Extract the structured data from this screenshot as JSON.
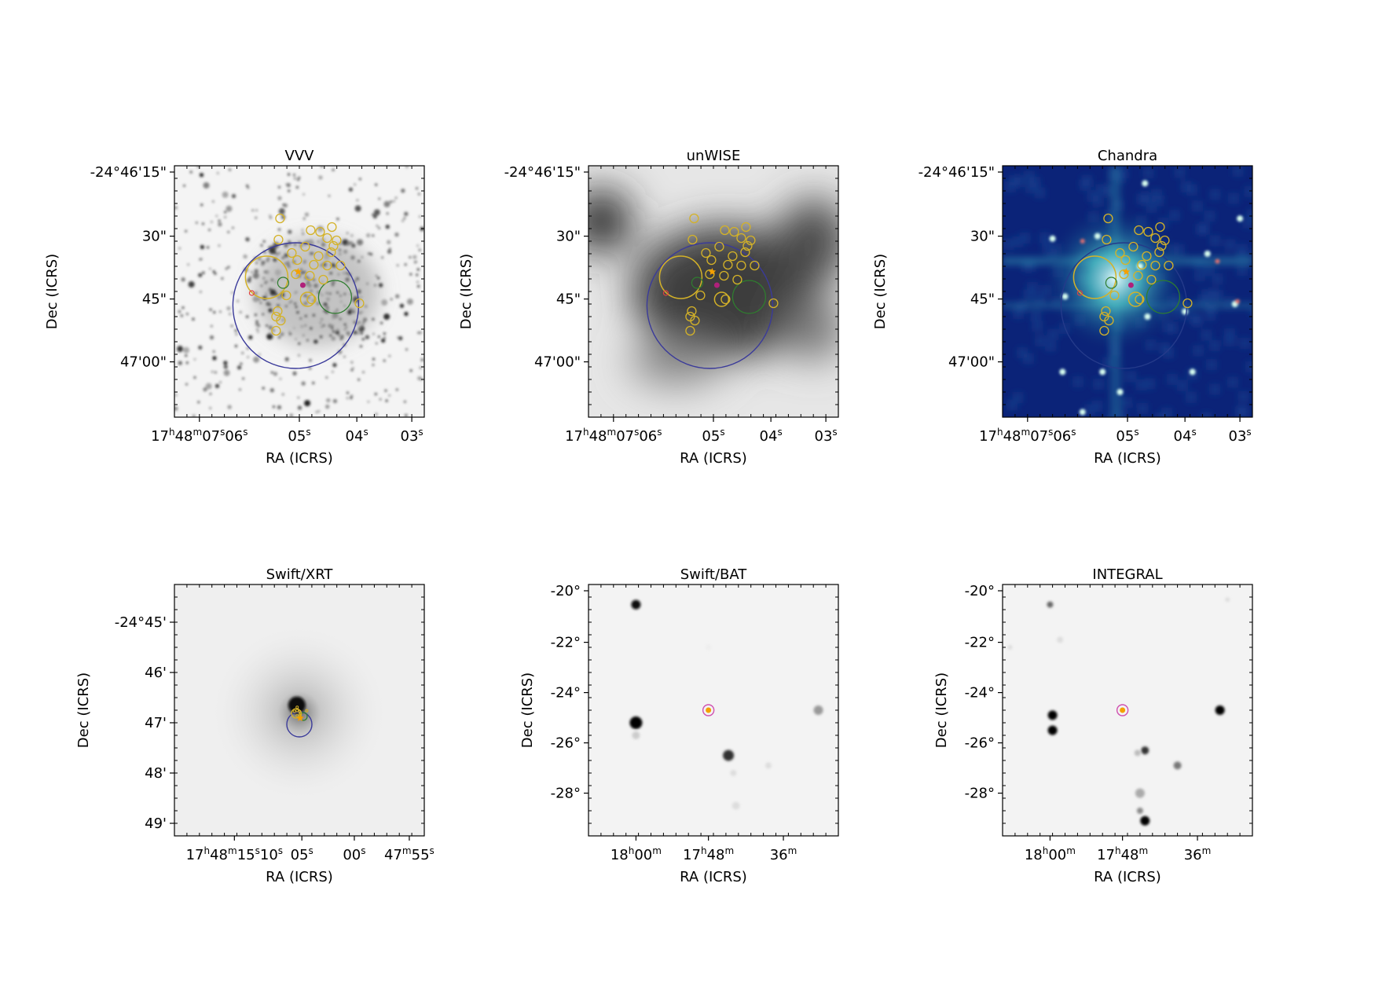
{
  "panels": [
    {
      "id": "vvv",
      "title": "VVV",
      "style": "vvv",
      "xlabel": "RA (ICRS)",
      "ylabel": "Dec (ICRS)",
      "yticks": [
        "-24°46'15\"",
        "30\"",
        "45\"",
        "47'00\""
      ],
      "xticks": [
        {
          "parts": [
            [
              "17",
              "n"
            ],
            [
              "h",
              "s"
            ],
            [
              "48",
              "n"
            ],
            [
              "m",
              "s"
            ],
            [
              "07",
              "n"
            ],
            [
              "s",
              "s"
            ],
            [
              "06",
              "n"
            ],
            [
              "s",
              "s"
            ]
          ]
        },
        {
          "parts": [
            [
              "05",
              "n"
            ],
            [
              "s",
              "s"
            ]
          ]
        },
        {
          "parts": [
            [
              "04",
              "n"
            ],
            [
              "s",
              "s"
            ]
          ]
        },
        {
          "parts": [
            [
              "03",
              "n"
            ],
            [
              "s",
              "s"
            ]
          ]
        }
      ]
    },
    {
      "id": "unwise",
      "title": "unWISE",
      "style": "unwise",
      "xlabel": "RA (ICRS)",
      "ylabel": "Dec (ICRS)",
      "yticks": [
        "-24°46'15\"",
        "30\"",
        "45\"",
        "47'00\""
      ],
      "xticks": [
        {
          "parts": [
            [
              "17",
              "n"
            ],
            [
              "h",
              "s"
            ],
            [
              "48",
              "n"
            ],
            [
              "m",
              "s"
            ],
            [
              "07",
              "n"
            ],
            [
              "s",
              "s"
            ],
            [
              "06",
              "n"
            ],
            [
              "s",
              "s"
            ]
          ]
        },
        {
          "parts": [
            [
              "05",
              "n"
            ],
            [
              "s",
              "s"
            ]
          ]
        },
        {
          "parts": [
            [
              "04",
              "n"
            ],
            [
              "s",
              "s"
            ]
          ]
        },
        {
          "parts": [
            [
              "03",
              "n"
            ],
            [
              "s",
              "s"
            ]
          ]
        }
      ]
    },
    {
      "id": "chandra",
      "title": "Chandra",
      "style": "chandra",
      "xlabel": "RA (ICRS)",
      "ylabel": "Dec (ICRS)",
      "yticks": [
        "-24°46'15\"",
        "30\"",
        "45\"",
        "47'00\""
      ],
      "xticks": [
        {
          "parts": [
            [
              "17",
              "n"
            ],
            [
              "h",
              "s"
            ],
            [
              "48",
              "n"
            ],
            [
              "m",
              "s"
            ],
            [
              "07",
              "n"
            ],
            [
              "s",
              "s"
            ],
            [
              "06",
              "n"
            ],
            [
              "s",
              "s"
            ]
          ]
        },
        {
          "parts": [
            [
              "05",
              "n"
            ],
            [
              "s",
              "s"
            ]
          ]
        },
        {
          "parts": [
            [
              "04",
              "n"
            ],
            [
              "s",
              "s"
            ]
          ]
        },
        {
          "parts": [
            [
              "03",
              "n"
            ],
            [
              "s",
              "s"
            ]
          ]
        }
      ]
    },
    {
      "id": "swift-xrt",
      "title": "Swift/XRT",
      "style": "xrt",
      "xlabel": "RA (ICRS)",
      "ylabel": "Dec (ICRS)",
      "yticks": [
        "-24°45'",
        "46'",
        "47'",
        "48'",
        "49'"
      ],
      "xticks": [
        {
          "parts": [
            [
              "17",
              "n"
            ],
            [
              "h",
              "s"
            ],
            [
              "48",
              "n"
            ],
            [
              "m",
              "s"
            ],
            [
              "15",
              "n"
            ],
            [
              "s",
              "s"
            ],
            [
              "10",
              "n"
            ],
            [
              "s",
              "s"
            ]
          ]
        },
        {
          "parts": [
            [
              "05",
              "n"
            ],
            [
              "s",
              "s"
            ]
          ]
        },
        {
          "parts": [
            [
              "00",
              "n"
            ],
            [
              "s",
              "s"
            ]
          ]
        },
        {
          "parts": [
            [
              "47",
              "n"
            ],
            [
              "m",
              "s"
            ],
            [
              "55",
              "n"
            ],
            [
              "s",
              "s"
            ]
          ]
        }
      ]
    },
    {
      "id": "swift-bat",
      "title": "Swift/BAT",
      "style": "bat",
      "xlabel": "RA (ICRS)",
      "ylabel": "Dec (ICRS)",
      "yticks": [
        "-20°",
        "-22°",
        "-24°",
        "-26°",
        "-28°"
      ],
      "xticks": [
        {
          "parts": [
            [
              "18",
              "n"
            ],
            [
              "h",
              "s"
            ],
            [
              "00",
              "n"
            ],
            [
              "m",
              "s"
            ]
          ]
        },
        {
          "parts": [
            [
              "17",
              "n"
            ],
            [
              "h",
              "s"
            ],
            [
              "48",
              "n"
            ],
            [
              "m",
              "s"
            ]
          ]
        },
        {
          "parts": [
            [
              "36",
              "n"
            ],
            [
              "m",
              "s"
            ]
          ]
        }
      ]
    },
    {
      "id": "integral",
      "title": "INTEGRAL",
      "style": "integral",
      "xlabel": "RA (ICRS)",
      "ylabel": "Dec (ICRS)",
      "yticks": [
        "-20°",
        "-22°",
        "-24°",
        "-26°",
        "-28°"
      ],
      "xticks": [
        {
          "parts": [
            [
              "18",
              "n"
            ],
            [
              "h",
              "s"
            ],
            [
              "00",
              "n"
            ],
            [
              "m",
              "s"
            ]
          ]
        },
        {
          "parts": [
            [
              "17",
              "n"
            ],
            [
              "h",
              "s"
            ],
            [
              "48",
              "n"
            ],
            [
              "m",
              "s"
            ]
          ]
        },
        {
          "parts": [
            [
              "36",
              "n"
            ],
            [
              "m",
              "s"
            ]
          ]
        }
      ]
    }
  ],
  "colors": {
    "yellow_circle": "#d4b228",
    "green_circle": "#2f7d2f",
    "blue_circle": "#3a3a9a",
    "orange_star": "#f5a000",
    "magenta_marker": "#b0207a",
    "red_marker": "#e04040",
    "pink_circle": "#d050b0"
  }
}
